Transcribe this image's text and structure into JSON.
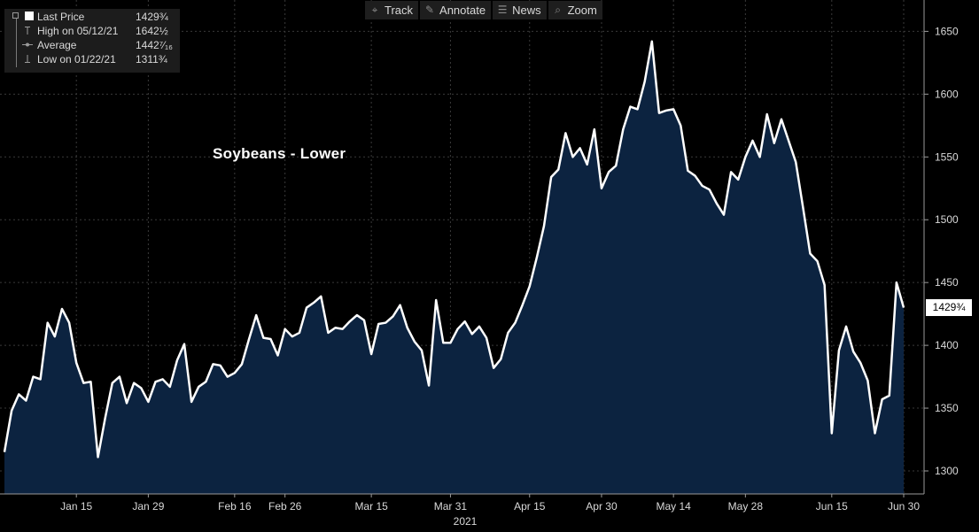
{
  "toolbar": {
    "items": [
      {
        "label": "Track",
        "icon": "crosshair-icon",
        "glyph": "⌖"
      },
      {
        "label": "Annotate",
        "icon": "pencil-icon",
        "glyph": "✎"
      },
      {
        "label": "News",
        "icon": "news-icon",
        "glyph": "☰"
      },
      {
        "label": "Zoom",
        "icon": "magnifier-icon",
        "glyph": "⌕"
      }
    ]
  },
  "legend": {
    "last_price_label": "Last Price",
    "last_price_value": "1429¾",
    "high_label": "High on 05/12/21",
    "high_value": "1642½",
    "average_label": "Average",
    "average_value": "1442⁷⁄₁₆",
    "low_label": "Low on 01/22/21",
    "low_value": "1311¾"
  },
  "last_price_tag": "1429¾",
  "colors": {
    "background": "#000000",
    "line": "#ffffff",
    "fill": "#0c2340",
    "grid": "#3a3a3a",
    "text": "#d9d9d9"
  },
  "chart_data": {
    "type": "area",
    "title": "Soybeans - Lower",
    "xlabel": "2021",
    "ylabel": "",
    "ylim": [
      1280,
      1670
    ],
    "y_ticks": [
      1300,
      1350,
      1400,
      1450,
      1500,
      1550,
      1600,
      1650
    ],
    "y_tick_labels": [
      "1300",
      "1350",
      "1400",
      "1450",
      "1500",
      "1550",
      "1600",
      "1650"
    ],
    "x_tick_labels": [
      "Jan 15",
      "Jan 29",
      "Feb 16",
      "Feb 26",
      "Mar 15",
      "Mar 31",
      "Apr 15",
      "Apr 30",
      "May 14",
      "May 28",
      "Jun 15",
      "Jun 30"
    ],
    "x_tick_positions": [
      10,
      20,
      32,
      39,
      51,
      62,
      73,
      83,
      93,
      103,
      115,
      125
    ],
    "grid": true,
    "legend": "top-left",
    "y_axis_side": "right",
    "series": [
      {
        "name": "Last Price",
        "values": [
          1315,
          1348,
          1361,
          1356,
          1375,
          1373,
          1418,
          1407,
          1429,
          1418,
          1386,
          1370,
          1371,
          1311,
          1342,
          1370,
          1375,
          1354,
          1370,
          1366,
          1355,
          1371,
          1373,
          1367,
          1388,
          1401,
          1355,
          1367,
          1371,
          1385,
          1384,
          1375,
          1378,
          1385,
          1405,
          1424,
          1406,
          1405,
          1392,
          1413,
          1407,
          1410,
          1430,
          1434,
          1439,
          1410,
          1414,
          1413,
          1419,
          1424,
          1420,
          1393,
          1417,
          1418,
          1423,
          1432,
          1414,
          1403,
          1396,
          1368,
          1436,
          1402,
          1402,
          1413,
          1419,
          1409,
          1415,
          1406,
          1382,
          1389,
          1410,
          1418,
          1432,
          1447,
          1470,
          1495,
          1534,
          1540,
          1569,
          1550,
          1557,
          1544,
          1572,
          1525,
          1538,
          1543,
          1572,
          1590,
          1588,
          1610,
          1642,
          1585,
          1587,
          1588,
          1575,
          1539,
          1535,
          1527,
          1524,
          1513,
          1504,
          1538,
          1532,
          1550,
          1563,
          1550,
          1584,
          1561,
          1580,
          1563,
          1546,
          1510,
          1473,
          1467,
          1448,
          1330,
          1396,
          1415,
          1395,
          1386,
          1372,
          1330,
          1357,
          1360,
          1450,
          1430
        ]
      }
    ]
  }
}
